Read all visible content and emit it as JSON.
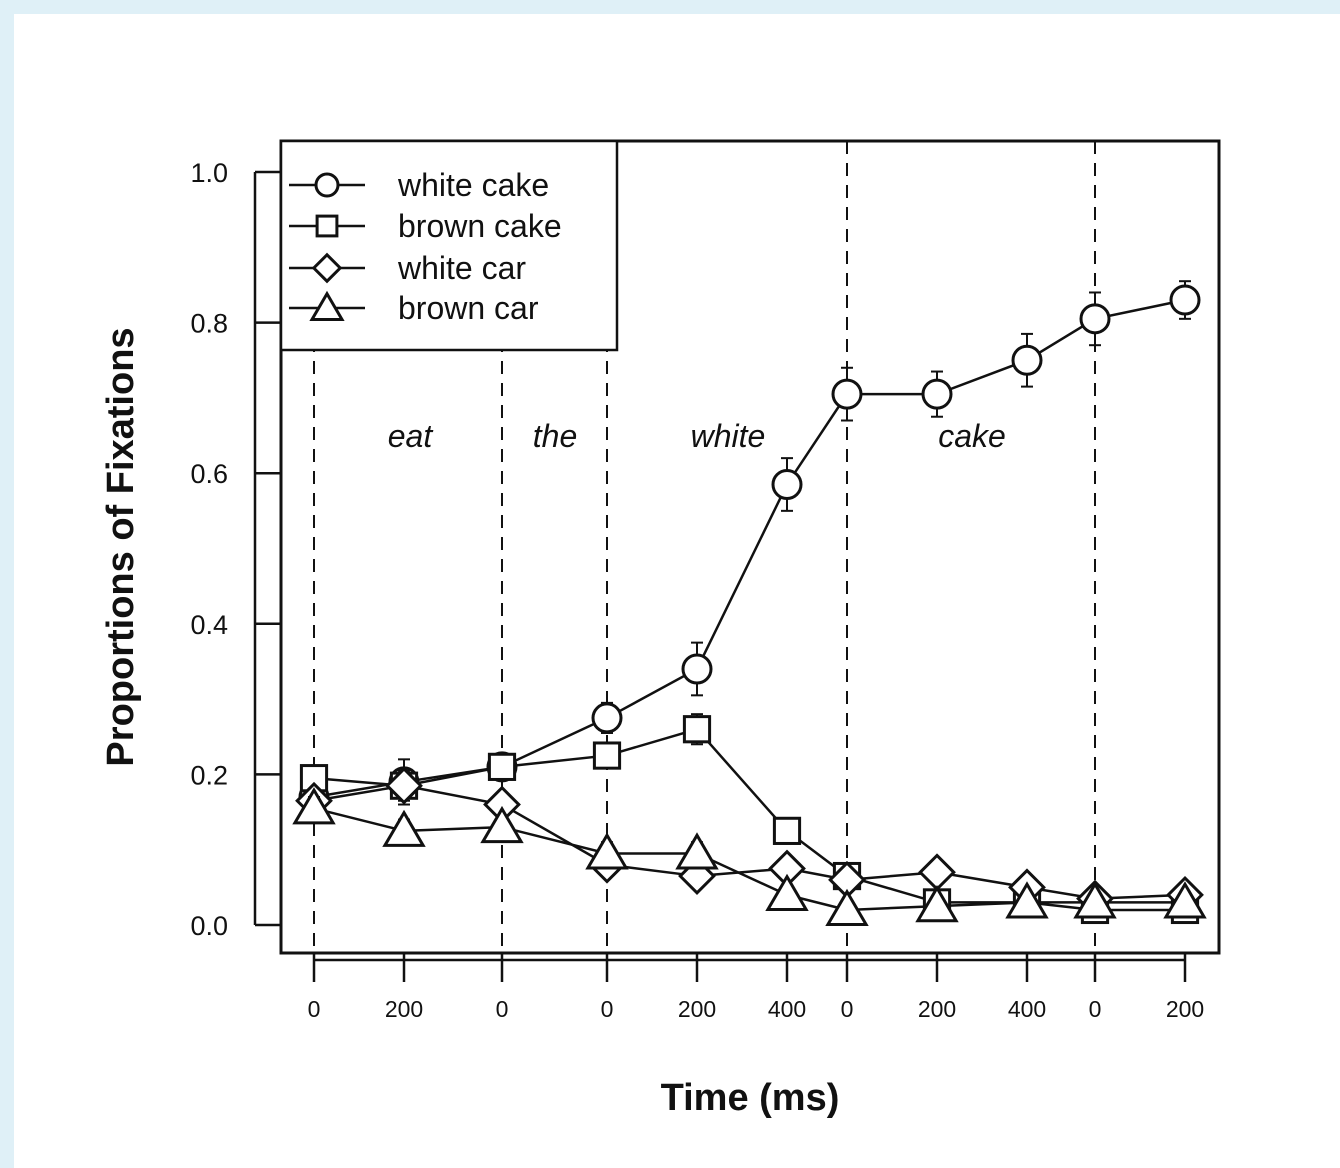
{
  "chart_data": {
    "type": "line",
    "xlabel": "Time (ms)",
    "ylabel": "Proportions of Fixations",
    "ylim": [
      0.0,
      1.0
    ],
    "yticks": [
      "0.0",
      "0.2",
      "0.4",
      "0.6",
      "0.8",
      "1.0"
    ],
    "x_tick_labels": [
      "0",
      "200",
      "0",
      "0",
      "200",
      "400",
      "0",
      "200",
      "400",
      "0",
      "200"
    ],
    "regions": [
      "eat",
      "the",
      "white",
      "cake"
    ],
    "legend_position": "top-left",
    "grid": false,
    "series": [
      {
        "name": "white cake",
        "marker": "circle",
        "values": [
          0.17,
          0.19,
          0.21,
          0.275,
          0.34,
          0.585,
          0.705,
          0.705,
          0.75,
          0.805,
          0.83
        ],
        "errors": [
          0.015,
          0.03,
          0.015,
          0.02,
          0.035,
          0.035,
          0.035,
          0.03,
          0.035,
          0.035,
          0.025
        ]
      },
      {
        "name": "brown cake",
        "marker": "square",
        "values": [
          0.195,
          0.185,
          0.21,
          0.225,
          0.26,
          0.125,
          0.065,
          0.03,
          0.03,
          0.02,
          0.02
        ],
        "errors": [
          0.015,
          0.015,
          0.015,
          0.015,
          0.02,
          0.015,
          0.01,
          0.01,
          0.01,
          0.01,
          0.01
        ]
      },
      {
        "name": "white car",
        "marker": "diamond",
        "values": [
          0.165,
          0.185,
          0.16,
          0.08,
          0.065,
          0.075,
          0.06,
          0.07,
          0.05,
          0.035,
          0.04
        ],
        "errors": [
          0.015,
          0.02,
          0.015,
          0.015,
          0.015,
          0.015,
          0.01,
          0.01,
          0.01,
          0.01,
          0.01
        ]
      },
      {
        "name": "brown car",
        "marker": "triangle",
        "values": [
          0.155,
          0.125,
          0.13,
          0.095,
          0.095,
          0.04,
          0.02,
          0.025,
          0.03,
          0.03,
          0.03
        ],
        "errors": [
          0.015,
          0.015,
          0.015,
          0.015,
          0.015,
          0.01,
          0.01,
          0.01,
          0.01,
          0.01,
          0.01
        ]
      }
    ]
  }
}
